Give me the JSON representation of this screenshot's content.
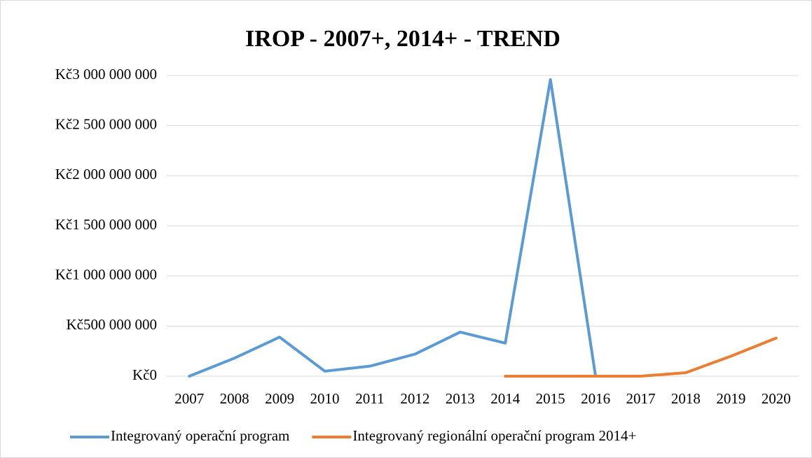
{
  "chart_data": {
    "type": "line",
    "title": "IROP - 2007+, 2014+ - TREND",
    "categories": [
      "2007",
      "2008",
      "2009",
      "2010",
      "2011",
      "2012",
      "2013",
      "2014",
      "2015",
      "2016",
      "2017",
      "2018",
      "2019",
      "2020"
    ],
    "series": [
      {
        "name": "Integrovaný operační program",
        "color": "#5b9bd5",
        "values": [
          0,
          180000000,
          390000000,
          50000000,
          100000000,
          220000000,
          440000000,
          330000000,
          2960000000,
          0,
          null,
          null,
          null,
          null
        ]
      },
      {
        "name": "Integrovaný regionální operační program 2014+",
        "color": "#ed7d31",
        "values": [
          null,
          null,
          null,
          null,
          null,
          null,
          null,
          0,
          0,
          0,
          0,
          35000000,
          200000000,
          380000000
        ]
      }
    ],
    "ylim": [
      0,
      3000000000
    ],
    "yticks": [
      {
        "value": 0,
        "label": "Kč0"
      },
      {
        "value": 500000000,
        "label": "Kč500 000 000"
      },
      {
        "value": 1000000000,
        "label": "Kč1 000 000 000"
      },
      {
        "value": 1500000000,
        "label": "Kč1 500 000 000"
      },
      {
        "value": 2000000000,
        "label": "Kč2 000 000 000"
      },
      {
        "value": 2500000000,
        "label": "Kč2 500 000 000"
      },
      {
        "value": 3000000000,
        "label": "Kč3 000 000 000"
      }
    ],
    "grid": true,
    "legend": "bottom"
  }
}
